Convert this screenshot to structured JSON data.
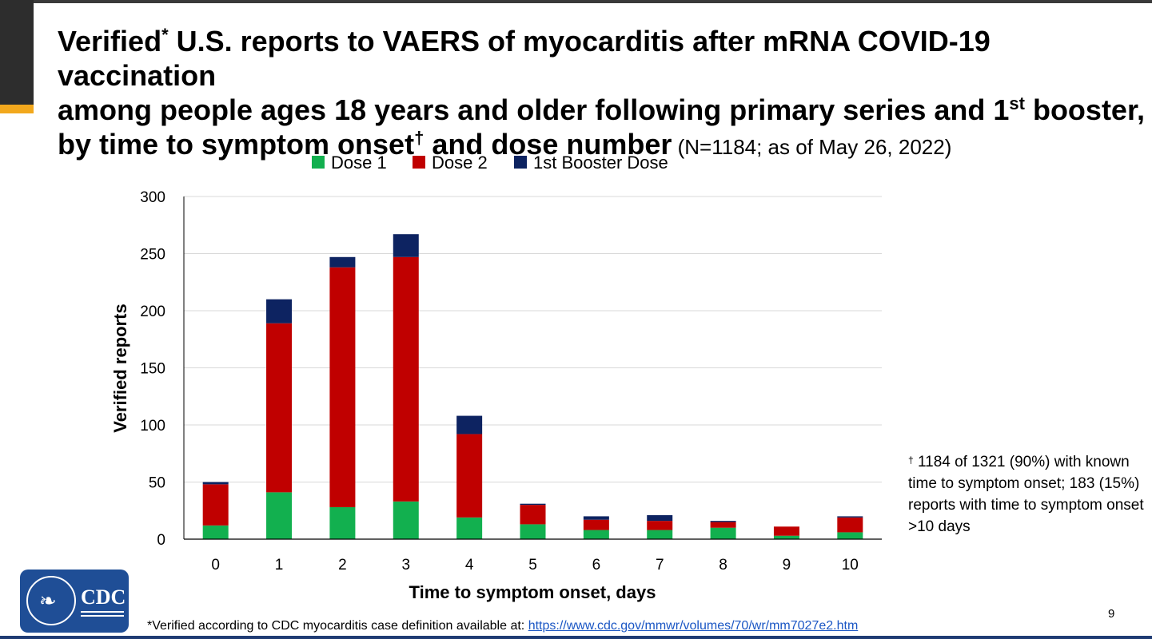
{
  "title": {
    "line1_part1": "Verified",
    "line1_sup": "*",
    "line1_part2": " U.S. reports to VAERS of myocarditis after mRNA COVID-19 vaccination",
    "line2_part1": "among people ages 18 years and older following primary series and 1",
    "line2_sup": "st",
    "line2_part2": " booster,",
    "line3_part1": "by time to symptom onset",
    "line3_sup": "†",
    "line3_part2": " and dose number",
    "line3_note": " (N=1184; as of May 26, 2022)"
  },
  "side_note": {
    "mark": "†",
    "text": " 1184 of 1321 (90%) with known time to symptom onset; 183 (15%) reports with time to symptom onset >10 days"
  },
  "footnote": {
    "text": "*Verified according to CDC myocarditis case definition available at: ",
    "link": "https://www.cdc.gov/mmwr/volumes/70/wr/mm7027e2.htm"
  },
  "page_number": "9",
  "logo": {
    "text": "CDC",
    "icon": "hhs-eagle-icon"
  },
  "colors": {
    "dose1": "#12b04f",
    "dose2": "#c00000",
    "booster": "#0d2361",
    "grid": "#d9d9d9",
    "axis": "#000000",
    "accent": "#f2a81d"
  },
  "chart_data": {
    "type": "bar",
    "stacked": true,
    "categories": [
      "0",
      "1",
      "2",
      "3",
      "4",
      "5",
      "6",
      "7",
      "8",
      "9",
      "10"
    ],
    "series": [
      {
        "name": "Dose 1",
        "values": [
          12,
          41,
          28,
          33,
          19,
          13,
          8,
          8,
          10,
          3,
          6
        ]
      },
      {
        "name": "Dose 2",
        "values": [
          36,
          148,
          210,
          214,
          73,
          17,
          9,
          8,
          5,
          8,
          13
        ]
      },
      {
        "name": "1st Booster Dose",
        "values": [
          2,
          21,
          9,
          20,
          16,
          1,
          3,
          5,
          1,
          0,
          1
        ]
      }
    ],
    "xlabel": "Time to symptom onset, days",
    "ylabel": "Verified reports",
    "ylim": [
      0,
      300
    ],
    "yticks": [
      "0",
      "50",
      "100",
      "150",
      "200",
      "250",
      "300"
    ],
    "grid": true,
    "legend_position": "top"
  }
}
